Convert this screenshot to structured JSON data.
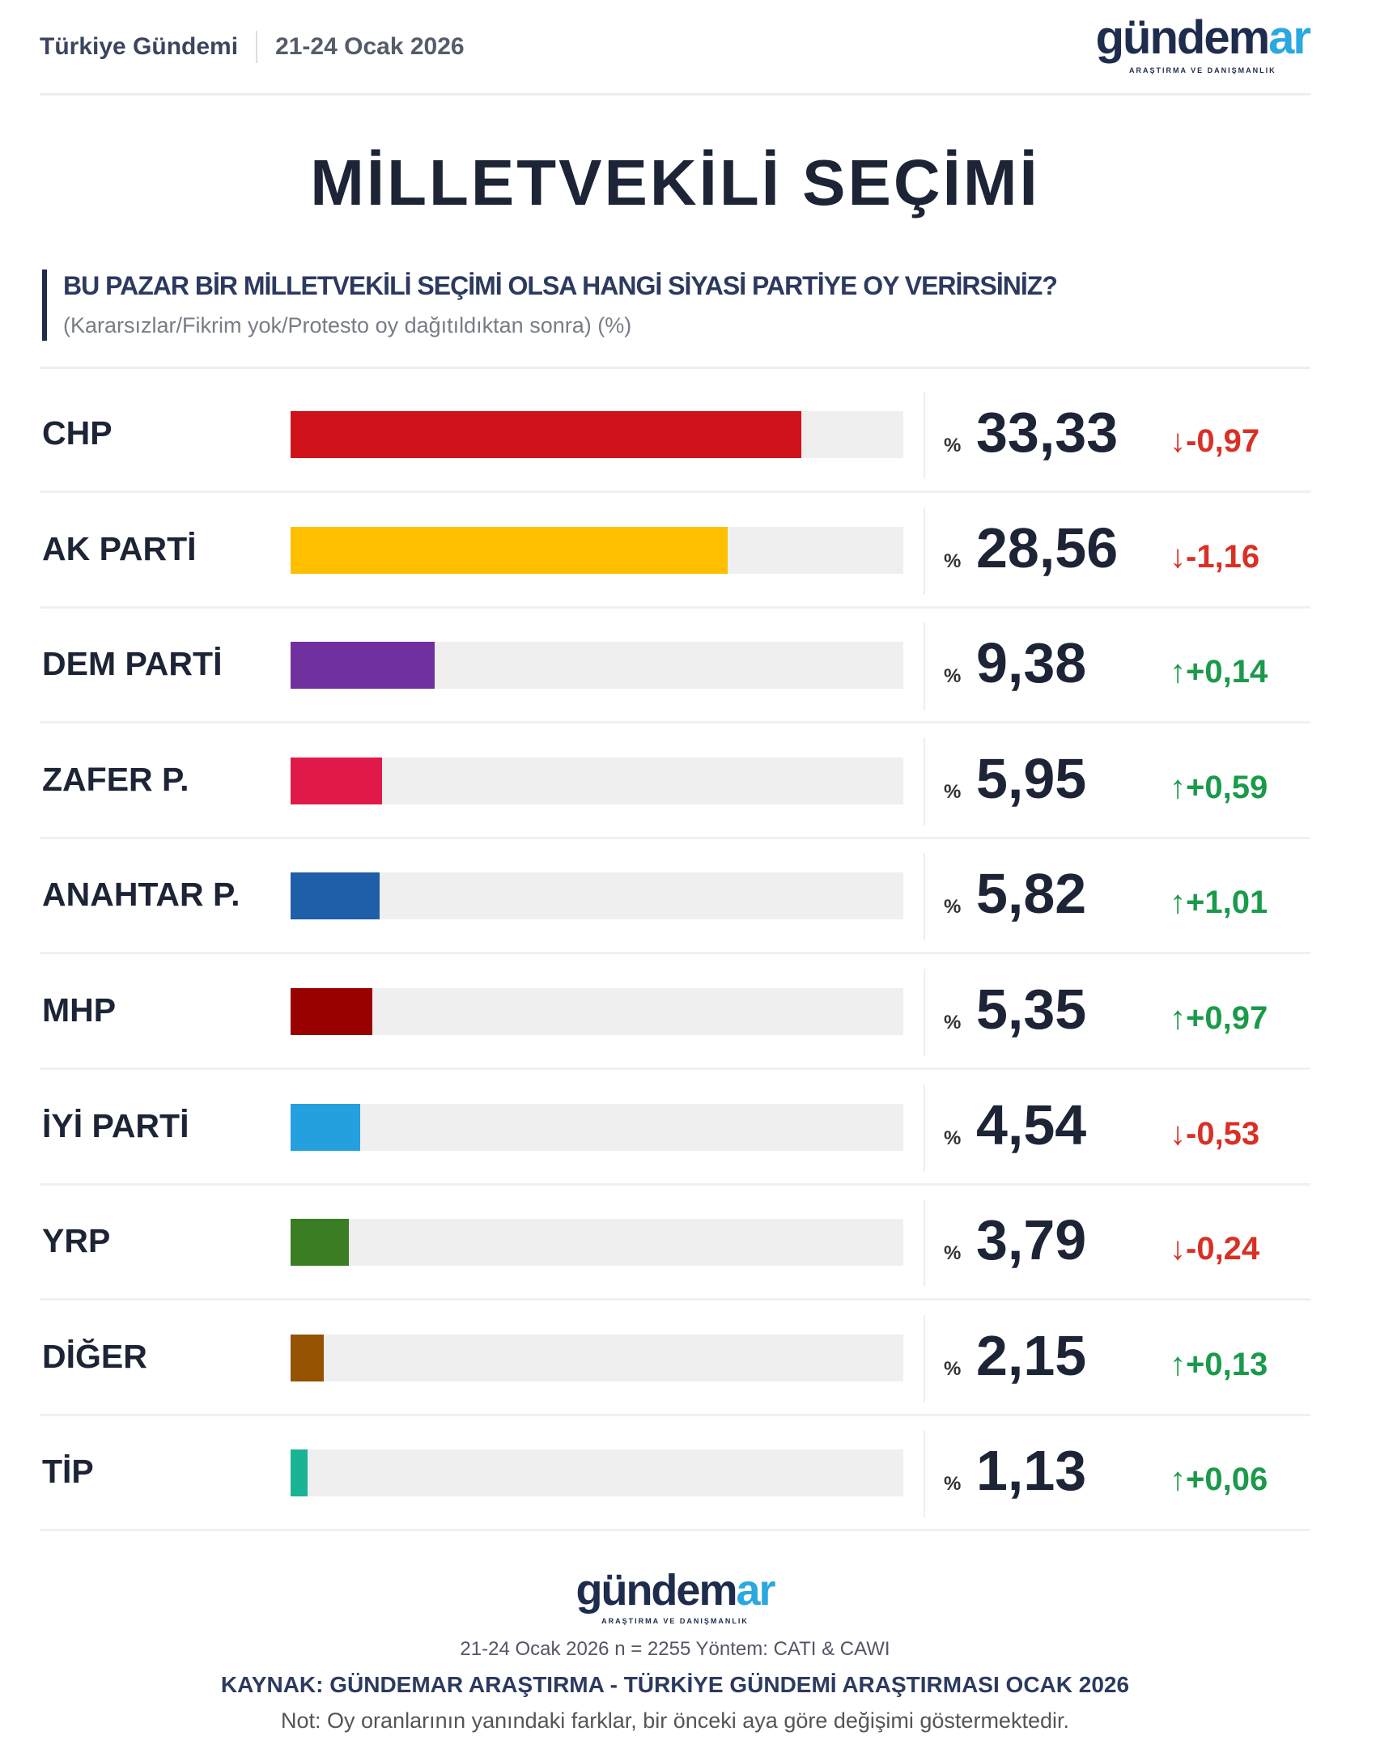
{
  "header": {
    "source_name": "Türkiye Gündemi",
    "date": "21-24 Ocak 2026"
  },
  "logo": {
    "main": "gündem",
    "accent": "ar",
    "tagline": "ARAŞTIRMA VE DANIŞMANLIK"
  },
  "colors": {
    "up": "#1a9a4a",
    "down": "#d93025",
    "track": "#efefef"
  },
  "chart_data": {
    "type": "bar",
    "title": "MİLLETVEKİLİ SEÇİMİ",
    "question": "BU PAZAR BİR MİLLETVEKİLİ SEÇİMİ OLSA HANGİ SİYASİ PARTİYE OY VERİRSİNİZ?",
    "subtitle": "(Kararsızlar/Fikrim yok/Protesto oy dağıtıldıktan sonra) (%)",
    "percent_sign": "%",
    "xlim": [
      0,
      40
    ],
    "bars": [
      {
        "party": "CHP",
        "value": 33.33,
        "value_label": "33,33",
        "change": "-0,97",
        "direction": "down",
        "color": "#d0121b"
      },
      {
        "party": "AK PARTİ",
        "value": 28.56,
        "value_label": "28,56",
        "change": "-1,16",
        "direction": "down",
        "color": "#fdbf00"
      },
      {
        "party": "DEM PARTİ",
        "value": 9.38,
        "value_label": "9,38",
        "change": "+0,14",
        "direction": "up",
        "color": "#7030a0"
      },
      {
        "party": "ZAFER P.",
        "value": 5.95,
        "value_label": "5,95",
        "change": "+0,59",
        "direction": "up",
        "color": "#e0194a"
      },
      {
        "party": "ANAHTAR P.",
        "value": 5.82,
        "value_label": "5,82",
        "change": "+1,01",
        "direction": "up",
        "color": "#1f5ea8"
      },
      {
        "party": "MHP",
        "value": 5.35,
        "value_label": "5,35",
        "change": "+0,97",
        "direction": "up",
        "color": "#990000"
      },
      {
        "party": "İYİ PARTİ",
        "value": 4.54,
        "value_label": "4,54",
        "change": "-0,53",
        "direction": "down",
        "color": "#24a0de"
      },
      {
        "party": "YRP",
        "value": 3.79,
        "value_label": "3,79",
        "change": "-0,24",
        "direction": "down",
        "color": "#3a7d22"
      },
      {
        "party": "DİĞER",
        "value": 2.15,
        "value_label": "2,15",
        "change": "+0,13",
        "direction": "up",
        "color": "#955200"
      },
      {
        "party": "TİP",
        "value": 1.13,
        "value_label": "1,13",
        "change": "+0,06",
        "direction": "up",
        "color": "#1ab394"
      }
    ]
  },
  "footer": {
    "method": "21-24 Ocak 2026 n = 2255 Yöntem: CATI & CAWI",
    "source": "KAYNAK: GÜNDEMAR ARAŞTIRMA - TÜRKİYE GÜNDEMİ ARAŞTIRMASI OCAK 2026",
    "note": "Not: Oy oranlarının yanındaki farklar, bir önceki aya göre değişimi göstermektedir."
  }
}
